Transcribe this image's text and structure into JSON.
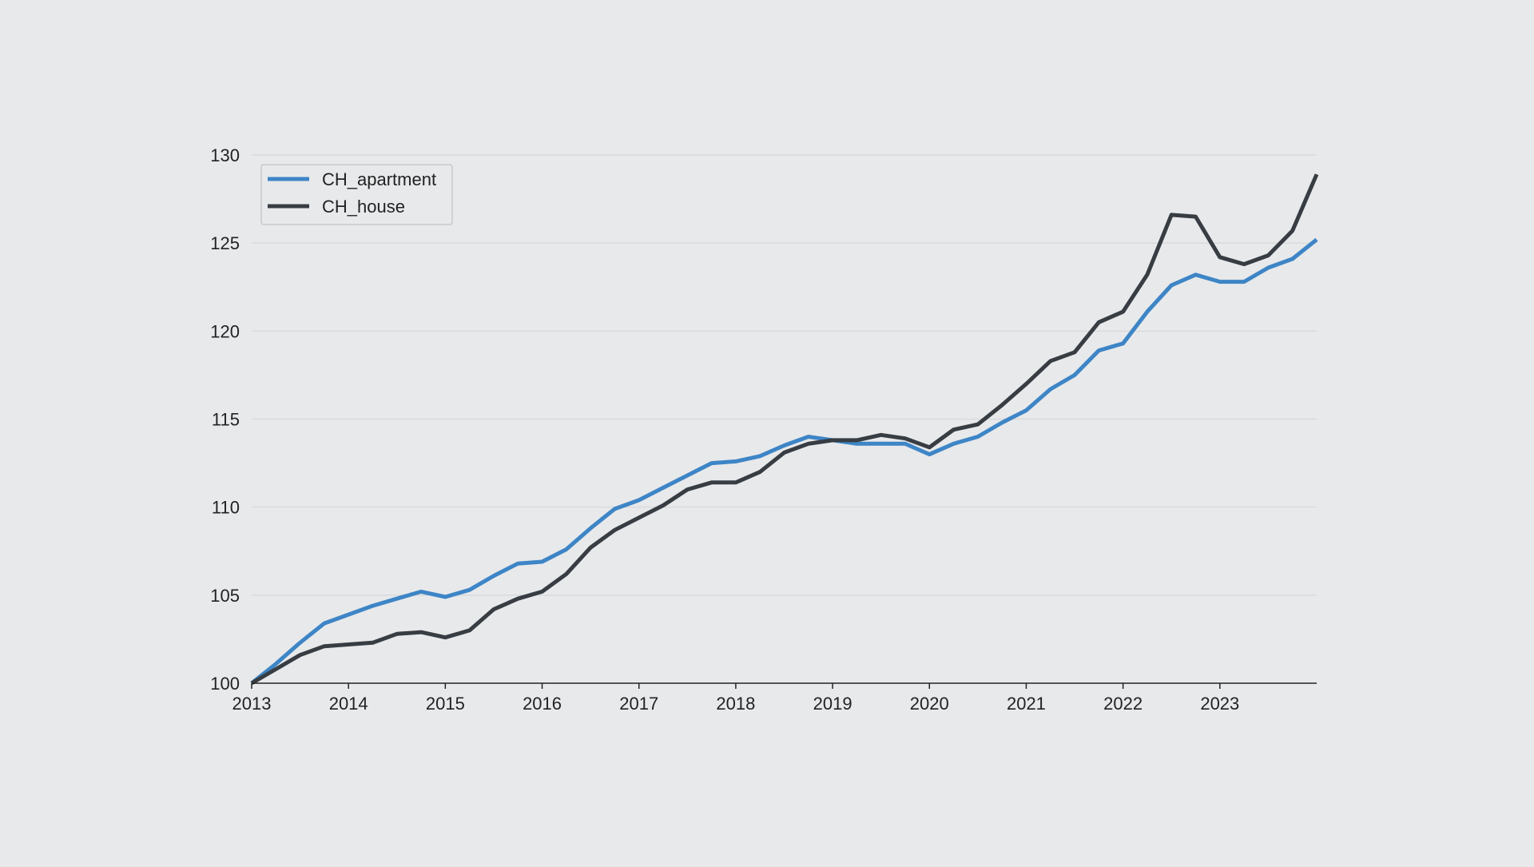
{
  "chart_data": {
    "type": "line",
    "title": "",
    "xlabel": "",
    "ylabel": "",
    "ylim": [
      100,
      130
    ],
    "xlim": [
      2013,
      2024
    ],
    "yticks": [
      "100",
      "105",
      "110",
      "115",
      "120",
      "125",
      "130"
    ],
    "xticks": [
      "2013",
      "2014",
      "2015",
      "2016",
      "2017",
      "2018",
      "2019",
      "2020",
      "2021",
      "2022",
      "2023"
    ],
    "grid": "horizontal",
    "legend_position": "top-left",
    "x": [
      2013.0,
      2013.25,
      2013.5,
      2013.75,
      2014.0,
      2014.25,
      2014.5,
      2014.75,
      2015.0,
      2015.25,
      2015.5,
      2015.75,
      2016.0,
      2016.25,
      2016.5,
      2016.75,
      2017.0,
      2017.25,
      2017.5,
      2017.75,
      2018.0,
      2018.25,
      2018.5,
      2018.75,
      2019.0,
      2019.25,
      2019.5,
      2019.75,
      2020.0,
      2020.25,
      2020.5,
      2020.75,
      2021.0,
      2021.25,
      2021.5,
      2021.75,
      2022.0,
      2022.25,
      2022.5,
      2022.75,
      2023.0,
      2023.25,
      2023.5,
      2023.75,
      2024.0
    ],
    "series": [
      {
        "name": "CH_apartment",
        "color": "#3d85c6",
        "values": [
          100.0,
          101.1,
          102.3,
          103.4,
          103.9,
          104.4,
          104.8,
          105.2,
          104.9,
          105.3,
          106.1,
          106.8,
          106.9,
          107.6,
          108.8,
          109.9,
          110.4,
          111.1,
          111.8,
          112.5,
          112.6,
          112.9,
          113.5,
          114.0,
          113.8,
          113.6,
          113.6,
          113.6,
          113.0,
          113.6,
          114.0,
          114.8,
          115.5,
          116.7,
          117.5,
          118.9,
          119.3,
          121.1,
          122.6,
          123.2,
          122.8,
          122.8,
          123.6,
          124.1,
          125.2
        ]
      },
      {
        "name": "CH_house",
        "color": "#373d42",
        "values": [
          100.0,
          100.8,
          101.6,
          102.1,
          102.2,
          102.3,
          102.8,
          102.9,
          102.6,
          103.0,
          104.2,
          104.8,
          105.2,
          106.2,
          107.7,
          108.7,
          109.4,
          110.1,
          111.0,
          111.4,
          111.4,
          112.0,
          113.1,
          113.6,
          113.8,
          113.8,
          114.1,
          113.9,
          113.4,
          114.4,
          114.7,
          115.8,
          117.0,
          118.3,
          118.8,
          120.5,
          121.1,
          123.2,
          126.6,
          126.5,
          124.2,
          123.8,
          124.3,
          125.7,
          128.9
        ]
      }
    ]
  }
}
